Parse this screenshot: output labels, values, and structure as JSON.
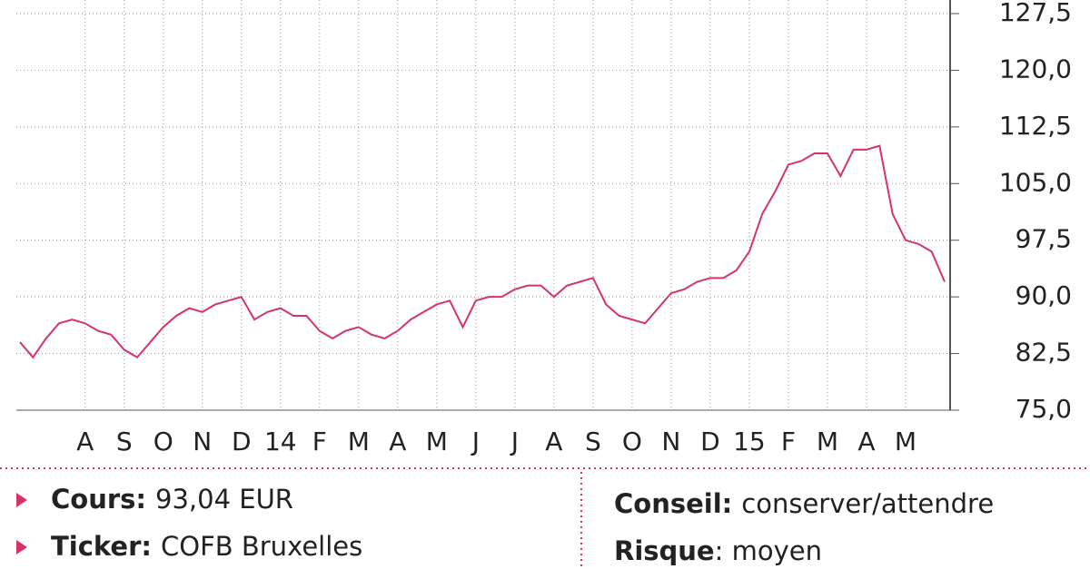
{
  "chart_data": {
    "type": "line",
    "categories": [
      null,
      null,
      null,
      null,
      null,
      "A",
      null,
      null,
      "S",
      null,
      null,
      "O",
      null,
      null,
      "N",
      null,
      null,
      "D",
      null,
      null,
      "14",
      null,
      null,
      "F",
      null,
      null,
      "M",
      null,
      null,
      "A",
      null,
      null,
      "M",
      null,
      null,
      "J",
      null,
      null,
      "J",
      null,
      null,
      "A",
      null,
      null,
      "S",
      null,
      null,
      "O",
      null,
      null,
      "N",
      null,
      null,
      "D",
      null,
      null,
      "15",
      null,
      null,
      "F",
      null,
      null,
      "M",
      null,
      null,
      "A",
      null,
      null,
      "M",
      null,
      null,
      null
    ],
    "series": [
      {
        "color": "#d6336c",
        "values": [
          84,
          82,
          84.5,
          86.5,
          87,
          86.5,
          85.5,
          85,
          83,
          82,
          84,
          86,
          87.5,
          88.5,
          88,
          89,
          89.5,
          90,
          87,
          88,
          88.5,
          87.5,
          87.5,
          85.5,
          84.5,
          85.5,
          86,
          85,
          84.5,
          85.5,
          87,
          88,
          89,
          89.5,
          86,
          89.5,
          90,
          90,
          91,
          91.5,
          91.5,
          90,
          91.5,
          92,
          92.5,
          89,
          87.5,
          87,
          86.5,
          88.5,
          90.5,
          91,
          92,
          92.5,
          92.5,
          93.5,
          96,
          101,
          104,
          107.5,
          108,
          109,
          109,
          106,
          109.5,
          109.5,
          110,
          101,
          97.5,
          97,
          96,
          92
        ]
      }
    ],
    "ylim": [
      75,
      127.5
    ],
    "yticks": [
      {
        "value": 75,
        "label": "75,0"
      },
      {
        "value": 82.5,
        "label": "82,5"
      },
      {
        "value": 90,
        "label": "90,0"
      },
      {
        "value": 97.5,
        "label": "97,5"
      },
      {
        "value": 105,
        "label": "105,0"
      },
      {
        "value": 112.5,
        "label": "112,5"
      },
      {
        "value": 120,
        "label": "120,0"
      },
      {
        "value": 127.5,
        "label": "127,5"
      }
    ],
    "grid": true
  },
  "info": {
    "cours_label": "Cours:",
    "cours_value": "93,04 EUR",
    "ticker_label": "Ticker:",
    "ticker_value": "COFB Bruxelles",
    "conseil_label": "Conseil:",
    "conseil_value": "conserver/attendre",
    "risque_label": "Risque",
    "risque_value": ": moyen"
  }
}
